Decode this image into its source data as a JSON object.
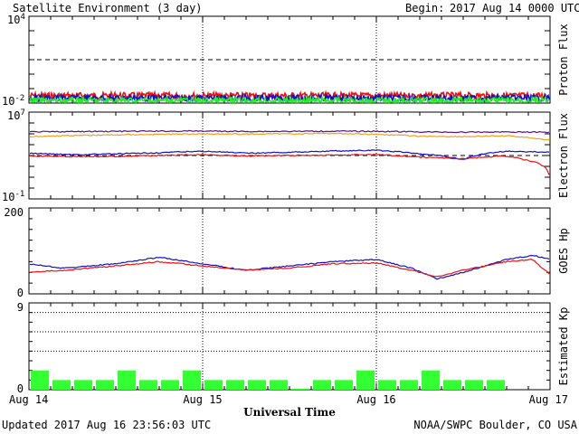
{
  "header": {
    "title": "Satellite Environment (3 day)",
    "begin_label": "Begin:",
    "begin_value": "2017 Aug 14 0000 UTC"
  },
  "footer": {
    "updated": "Updated 2017 Aug 16 23:56:03 UTC",
    "credit": "NOAA/SWPC Boulder, CO USA"
  },
  "x_axis": {
    "label": "Universal Time",
    "ticks": [
      "Aug 14",
      "Aug 15",
      "Aug 16",
      "Aug 17"
    ],
    "range_days": [
      0,
      3
    ]
  },
  "colors": {
    "red": "#ee1111",
    "blue": "#1111cc",
    "green": "#22ee22",
    "orange": "#f0a020",
    "purple": "#551188",
    "kp_bar": "#33ff33"
  },
  "chart_data": [
    {
      "type": "line",
      "ylabel": "Proton Flux",
      "yscale": "log",
      "ylim": [
        0.01,
        10000
      ],
      "ytick_labels": {
        "top": "10",
        "top_exp": "4",
        "bottom": "10",
        "bottom_exp": "-2"
      },
      "dashed_reference": 10,
      "series": [
        {
          "color": "red",
          "x": [
            0,
            0.5,
            1,
            1.5,
            2,
            2.5,
            3
          ],
          "y": [
            0.032,
            0.033,
            0.032,
            0.033,
            0.032,
            0.033,
            0.032
          ]
        },
        {
          "color": "blue",
          "x": [
            0,
            0.5,
            1,
            1.5,
            2,
            2.5,
            3
          ],
          "y": [
            0.022,
            0.022,
            0.022,
            0.022,
            0.022,
            0.022,
            0.022
          ]
        },
        {
          "color": "green",
          "x": [
            0,
            0.5,
            1,
            1.5,
            2,
            2.5,
            3
          ],
          "y": [
            0.015,
            0.015,
            0.015,
            0.015,
            0.015,
            0.015,
            0.015
          ]
        }
      ]
    },
    {
      "type": "line",
      "ylabel": "Electron Flux",
      "yscale": "log",
      "ylim": [
        0.1,
        10000000
      ],
      "ytick_labels": {
        "top": "10",
        "top_exp": "7",
        "bottom": "10",
        "bottom_exp": "-1"
      },
      "dashed_reference": 1000,
      "series": [
        {
          "color": "purple",
          "x": [
            0,
            0.25,
            0.5,
            0.75,
            1,
            1.25,
            1.5,
            1.75,
            2,
            2.25,
            2.5,
            2.75,
            3
          ],
          "y": [
            150000,
            160000,
            170000,
            175000,
            180000,
            165000,
            170000,
            175000,
            170000,
            150000,
            140000,
            150000,
            140000
          ]
        },
        {
          "color": "orange",
          "x": [
            0,
            0.25,
            0.5,
            0.75,
            1,
            1.25,
            1.5,
            1.75,
            2,
            2.25,
            2.5,
            2.75,
            3
          ],
          "y": [
            55000,
            70000,
            80000,
            90000,
            100000,
            95000,
            100000,
            110000,
            90000,
            60000,
            55000,
            65000,
            25000
          ]
        },
        {
          "color": "blue",
          "x": [
            0,
            0.25,
            0.5,
            0.75,
            1,
            1.25,
            1.5,
            1.75,
            2,
            2.25,
            2.5,
            2.75,
            3
          ],
          "y": [
            1600,
            1200,
            1400,
            1800,
            2500,
            1600,
            2000,
            2600,
            3000,
            1400,
            400,
            2500,
            2000
          ]
        },
        {
          "color": "red",
          "x": [
            0,
            0.25,
            0.5,
            0.75,
            1,
            1.25,
            1.5,
            1.75,
            2,
            2.25,
            2.5,
            2.75,
            2.85,
            3
          ],
          "y": [
            900,
            800,
            850,
            1000,
            1200,
            900,
            1000,
            1100,
            1200,
            700,
            500,
            900,
            400,
            3
          ]
        }
      ]
    },
    {
      "type": "line",
      "ylabel": "GOES Hp",
      "yscale": "linear",
      "ylim": [
        0,
        200
      ],
      "yticks": [
        0,
        200
      ],
      "series": [
        {
          "color": "blue",
          "x": [
            0,
            0.2,
            0.5,
            0.75,
            1,
            1.25,
            1.5,
            1.75,
            2,
            2.2,
            2.35,
            2.5,
            2.75,
            2.9,
            3
          ],
          "y": [
            70,
            60,
            70,
            85,
            70,
            55,
            65,
            75,
            80,
            60,
            35,
            50,
            80,
            90,
            80
          ]
        },
        {
          "color": "red",
          "x": [
            0,
            0.2,
            0.5,
            0.75,
            1,
            1.25,
            1.5,
            1.75,
            2,
            2.2,
            2.35,
            2.5,
            2.75,
            2.9,
            3
          ],
          "y": [
            50,
            55,
            65,
            75,
            65,
            55,
            60,
            70,
            72,
            55,
            40,
            55,
            75,
            80,
            45
          ]
        }
      ]
    },
    {
      "type": "bar",
      "ylabel": "Estimated Kp",
      "ylim": [
        0,
        9
      ],
      "yticks": [
        0,
        9
      ],
      "bar_width_days": 0.125,
      "values": [
        2,
        1,
        1,
        1,
        2,
        1,
        1,
        2,
        1,
        1,
        1,
        1,
        0.1,
        1,
        1,
        2,
        1,
        1,
        2,
        1,
        1,
        1,
        0,
        0
      ]
    }
  ]
}
